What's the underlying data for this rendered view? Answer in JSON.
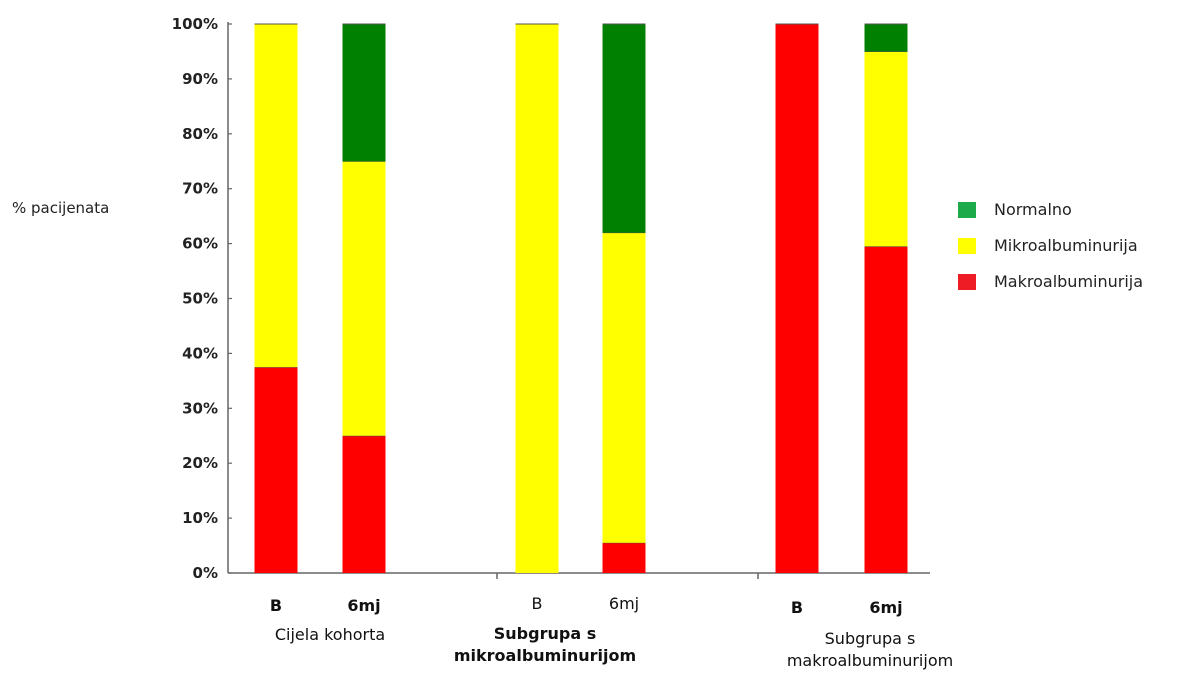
{
  "chart_data": {
    "type": "bar",
    "stacked": true,
    "ylabel": "% pacijenata",
    "ylim": [
      0,
      100
    ],
    "yticks": [
      "0%",
      "10%",
      "20%",
      "30%",
      "40%",
      "50%",
      "60%",
      "70%",
      "80%",
      "90%",
      "100%"
    ],
    "categories": [
      "B",
      "6mj",
      "B",
      "6mj",
      "B",
      "6mj"
    ],
    "groups": [
      {
        "label": "Cijela kohorta",
        "bold": false
      },
      {
        "label": "Subgrupa s mikroalbuminurijom",
        "line1": "Subgrupa s",
        "line2": "mikroalbuminurijom",
        "bold": true
      },
      {
        "label": "Subgrupa s makroalbuminurijom",
        "line1": "Subgrupa s",
        "line2": "makroalbuminurijom",
        "bold": false
      }
    ],
    "series": [
      {
        "name": "Makroalbuminurija",
        "color": "#ff0000",
        "values": [
          37.5,
          25,
          0,
          5.5,
          100,
          59.5
        ]
      },
      {
        "name": "Mikroalbuminurija",
        "color": "#ffff00",
        "values": [
          62.5,
          50,
          100,
          56.5,
          0,
          35.5
        ]
      },
      {
        "name": "Normalno",
        "color": "#008000",
        "values": [
          0,
          25,
          0,
          38,
          0,
          5
        ]
      }
    ],
    "legend": {
      "position": "right",
      "items": [
        {
          "name": "Normalno",
          "color": "#1daa4a"
        },
        {
          "name": "Mikroalbuminurija",
          "color": "#ffff00"
        },
        {
          "name": "Makroalbuminurija",
          "color": "#ee1c24"
        }
      ]
    },
    "grid": false
  }
}
